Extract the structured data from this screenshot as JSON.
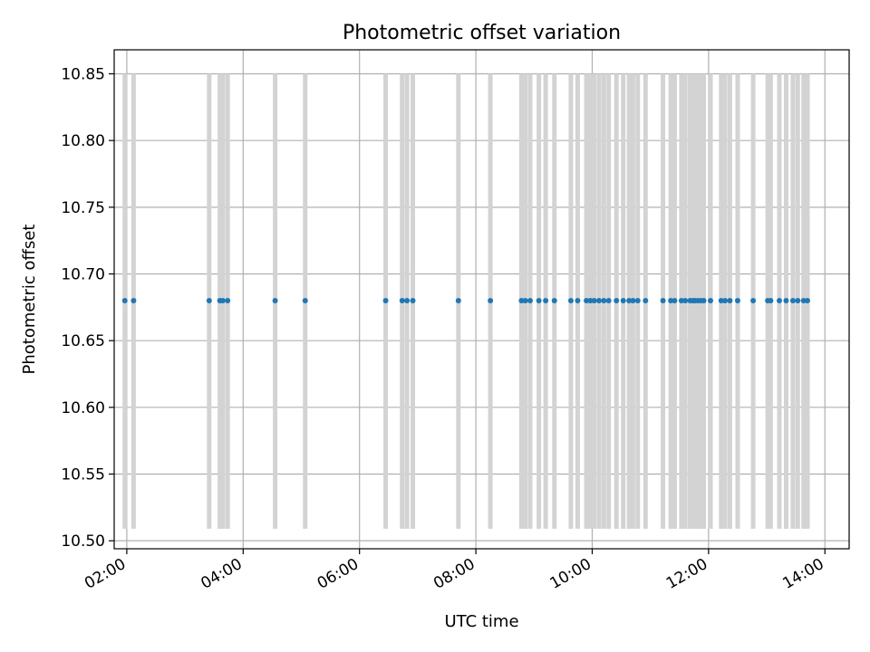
{
  "chart_data": {
    "type": "scatter",
    "title": "Photometric offset variation",
    "xlabel": "UTC time",
    "ylabel": "Photometric offset",
    "x_axis": "time (UTC, hours)",
    "xlim": [
      "01:47",
      "14:25"
    ],
    "ylim": [
      10.494,
      10.868
    ],
    "x_ticks": [
      "02:00",
      "04:00",
      "06:00",
      "08:00",
      "10:00",
      "12:00",
      "14:00"
    ],
    "y_ticks": [
      "10.50",
      "10.55",
      "10.60",
      "10.65",
      "10.70",
      "10.75",
      "10.80",
      "10.85"
    ],
    "grid": true,
    "legend": "none",
    "point_color": "#1f77b4",
    "bar_color": "#d3d3d3",
    "bar_range": [
      10.509,
      10.85
    ],
    "series": [
      {
        "x": [
          "01:58",
          "02:07",
          "03:25",
          "03:36",
          "03:39",
          "03:44",
          "04:33",
          "05:04",
          "06:27",
          "06:44",
          "06:49",
          "06:55",
          "07:42",
          "08:15",
          "08:47",
          "08:51",
          "08:56",
          "09:05",
          "09:12",
          "09:21",
          "09:38",
          "09:45",
          "09:54",
          "09:58",
          "10:02",
          "10:07",
          "10:12",
          "10:17",
          "10:25",
          "10:32",
          "10:38",
          "10:42",
          "10:47",
          "10:55",
          "11:13",
          "11:21",
          "11:25",
          "11:32",
          "11:36",
          "11:41",
          "11:44",
          "11:46",
          "11:49",
          "11:52",
          "11:55",
          "12:02",
          "12:13",
          "12:17",
          "12:22",
          "12:30",
          "12:46",
          "13:01",
          "13:04",
          "13:13",
          "13:20",
          "13:27",
          "13:32",
          "13:38",
          "13:42"
        ],
        "values": [
          10.68,
          10.68,
          10.68,
          10.68,
          10.68,
          10.68,
          10.68,
          10.68,
          10.68,
          10.68,
          10.68,
          10.68,
          10.68,
          10.68,
          10.68,
          10.68,
          10.68,
          10.68,
          10.68,
          10.68,
          10.68,
          10.68,
          10.68,
          10.68,
          10.68,
          10.68,
          10.68,
          10.68,
          10.68,
          10.68,
          10.68,
          10.68,
          10.68,
          10.68,
          10.68,
          10.68,
          10.68,
          10.68,
          10.68,
          10.68,
          10.68,
          10.68,
          10.68,
          10.68,
          10.68,
          10.68,
          10.68,
          10.68,
          10.68,
          10.68,
          10.68,
          10.68,
          10.68,
          10.68,
          10.68,
          10.68,
          10.68,
          10.68,
          10.68
        ]
      }
    ]
  }
}
